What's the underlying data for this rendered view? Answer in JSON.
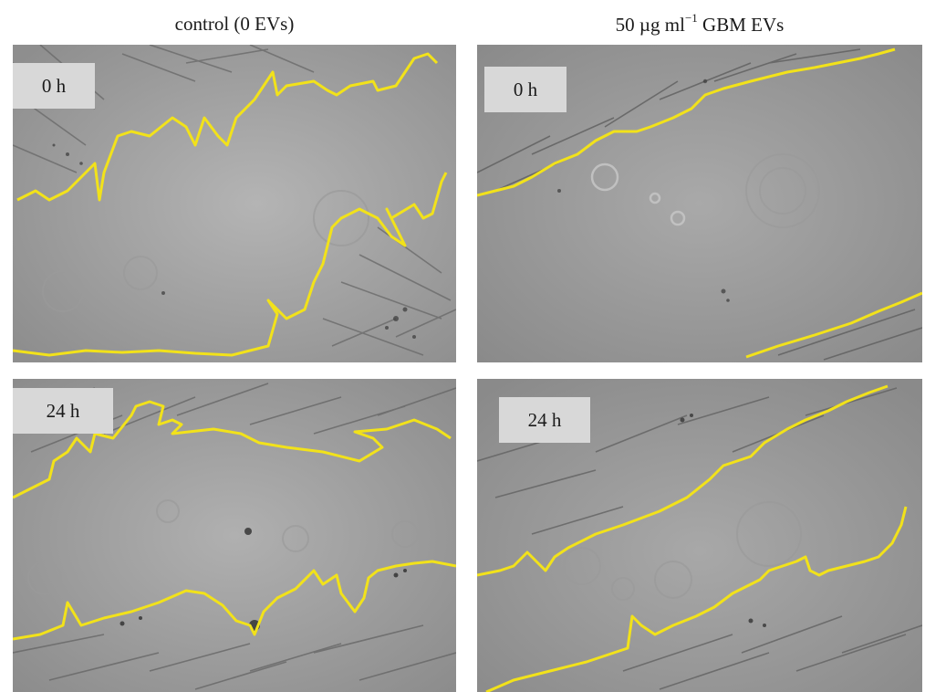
{
  "columns": {
    "left_title": "control (0 EVs)",
    "right_title_prefix": "50 µg ml",
    "right_title_exponent": "−1",
    "right_title_suffix": " GBM EVs"
  },
  "panels": [
    {
      "time_label": "0 h",
      "condition": "control (0 EVs)"
    },
    {
      "time_label": "0 h",
      "condition": "50 µg ml−1 GBM EVs"
    },
    {
      "time_label": "24 h",
      "condition": "control (0 EVs)"
    },
    {
      "time_label": "24 h",
      "condition": "50 µg ml−1 GBM EVs"
    }
  ],
  "colors": {
    "wound_edge_line": "#f2e21a",
    "background_field": "#a8a8a8",
    "label_box": "#d8d8d8"
  }
}
